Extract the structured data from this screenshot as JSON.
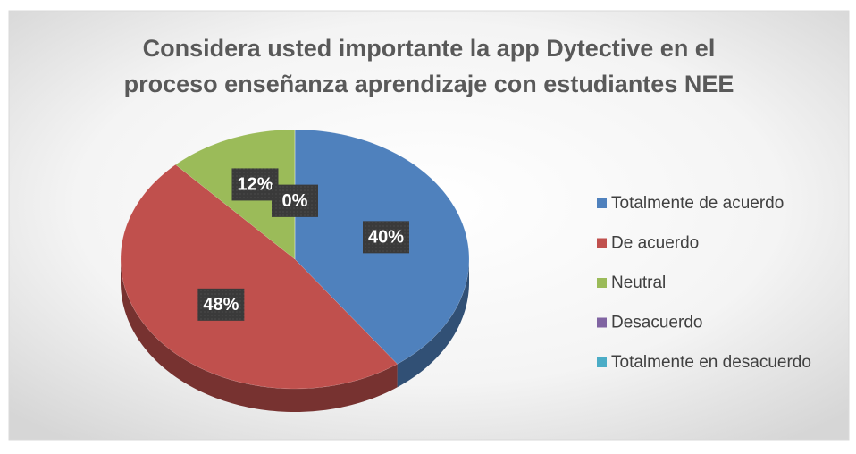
{
  "chart_data": {
    "type": "pie",
    "title": "Considera usted importante la app Dytective en el proceso enseñanza aprendizaje con estudiantes NEE",
    "categories": [
      "Totalmente de acuerdo",
      "De acuerdo",
      "Neutral",
      "Desacuerdo",
      "Totalmente en desacuerdo"
    ],
    "values": [
      40,
      48,
      12,
      0,
      0
    ],
    "value_labels": [
      "40%",
      "48%",
      "12%",
      "0%",
      "0%"
    ],
    "colors": [
      "#4f81bd",
      "#c0504d",
      "#9bbb59",
      "#8064a2",
      "#4bacc6"
    ],
    "legend": "right"
  }
}
